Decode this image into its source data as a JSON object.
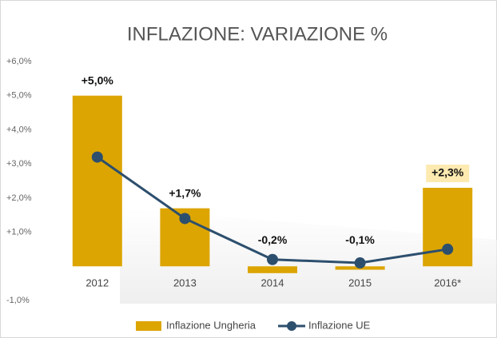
{
  "chart_data": {
    "type": "bar",
    "title": "INFLAZIONE: VARIAZIONE %",
    "categories": [
      "2012",
      "2013",
      "2014",
      "2015",
      "2016*"
    ],
    "series": [
      {
        "name": "Inflazione Ungheria",
        "type": "bar",
        "color": "#dca502",
        "values": [
          5.0,
          1.7,
          -0.2,
          -0.1,
          2.3
        ],
        "value_labels": [
          "+5,0%",
          "+1,7%",
          "-0,2%",
          "-0,1%",
          "+2,3%"
        ]
      },
      {
        "name": "Inflazione UE",
        "type": "line",
        "color": "#2d4f6e",
        "values": [
          3.2,
          1.4,
          0.2,
          0.1,
          0.5
        ]
      }
    ],
    "ylim": [
      -1,
      6
    ],
    "yticks": [
      {
        "value": 6,
        "label": "+6,0%"
      },
      {
        "value": 5,
        "label": "+5,0%"
      },
      {
        "value": 4,
        "label": "+4,0%"
      },
      {
        "value": 3,
        "label": "+3,0%"
      },
      {
        "value": 2,
        "label": "+2,0%"
      },
      {
        "value": 1,
        "label": "+1,0%"
      },
      {
        "value": -1,
        "label": "-1,0%"
      }
    ],
    "legend": "bottom"
  }
}
